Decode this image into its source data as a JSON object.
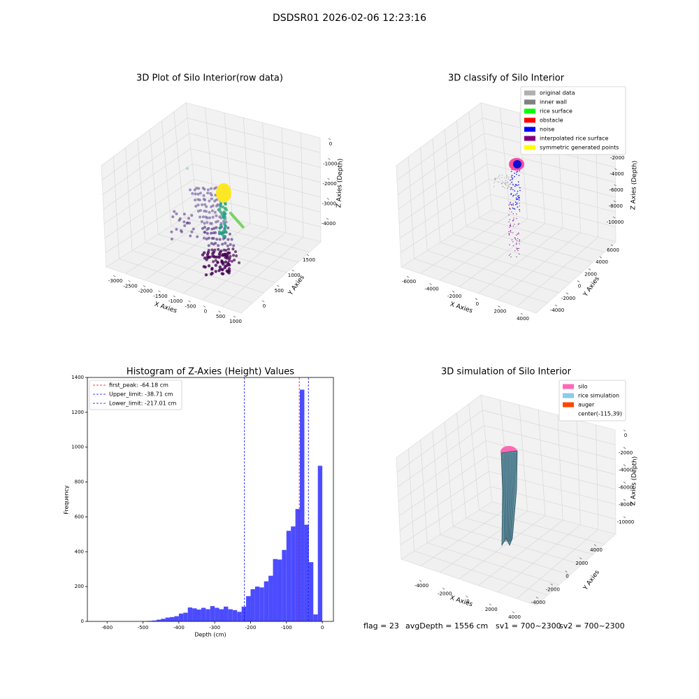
{
  "title": "DSDSR01 2026-02-06 12:23:16",
  "chart_data": [
    {
      "type": "scatter3d",
      "title": "3D Plot of Silo Interior(row data)",
      "xlabel": "X Axies",
      "ylabel": "Y Axies",
      "zlabel": "Z Axies (Depth)",
      "xlim": [
        -3000,
        1000
      ],
      "xticks": [
        -3000,
        -2500,
        -2000,
        -1500,
        -1000,
        -500,
        0,
        500,
        1000
      ],
      "ylim": [
        0,
        1500
      ],
      "yticks": [
        0,
        500,
        1000,
        1500
      ],
      "zlim": [
        0,
        -4000
      ],
      "zticks": [
        0,
        -1000,
        -2000,
        -3000,
        -4000
      ]
    },
    {
      "type": "scatter3d",
      "title": "3D classify of Silo Interior",
      "xlabel": "X Axies",
      "ylabel": "Y Axies",
      "zlabel": "Z Axies (Depth)",
      "xlim": [
        -6000,
        4000
      ],
      "xticks": [
        -6000,
        -4000,
        -2000,
        0,
        2000,
        4000
      ],
      "ylim": [
        -4000,
        6000
      ],
      "yticks": [
        -4000,
        -2000,
        0,
        2000,
        4000,
        6000
      ],
      "zlim": [
        0,
        -10000
      ],
      "zticks": [
        0,
        -2000,
        -4000,
        -6000,
        -8000,
        -10000
      ],
      "legend": [
        {
          "name": "original data",
          "color": "#b0b0b0"
        },
        {
          "name": "inner wall",
          "color": "#808080"
        },
        {
          "name": "rice surface",
          "color": "#00ff00"
        },
        {
          "name": "obstacle",
          "color": "#ff0000"
        },
        {
          "name": "noise",
          "color": "#0000ff"
        },
        {
          "name": "interpolated rice surface",
          "color": "#800080"
        },
        {
          "name": "symmetric generated points",
          "color": "#ffff00"
        }
      ]
    },
    {
      "type": "histogram",
      "title": "Histogram of Z-Axies (Height) Values",
      "xlabel": "Depth (cm)",
      "ylabel": "Frequency",
      "color": "#4c4cff",
      "bins": [
        -500,
        -487.5,
        -475,
        -462.5,
        -450,
        -437.5,
        -425,
        -412.5,
        -400,
        -387.5,
        -375,
        -362.5,
        -350,
        -337.5,
        -325,
        -312.5,
        -300,
        -287.5,
        -275,
        -262.5,
        -250,
        -237.5,
        -225,
        -212.5,
        -200,
        -187.5,
        -175,
        -162.5,
        -150,
        -137.5,
        -125,
        -112.5,
        -100,
        -87.5,
        -75,
        -62.5,
        -50,
        -37.5,
        -25,
        -12.5,
        0
      ],
      "values": [
        2,
        3,
        5,
        10,
        15,
        22,
        25,
        30,
        45,
        50,
        80,
        75,
        68,
        78,
        70,
        88,
        78,
        70,
        85,
        70,
        65,
        55,
        85,
        145,
        185,
        200,
        195,
        230,
        262,
        358,
        355,
        410,
        520,
        545,
        645,
        1330,
        555,
        340,
        40,
        893
      ],
      "xlim": [
        -655,
        31
      ],
      "xticks": [
        -600,
        -500,
        -400,
        -300,
        -200,
        -100,
        0
      ],
      "ylim": [
        0,
        1400
      ],
      "yticks": [
        0,
        200,
        400,
        600,
        800,
        1000,
        1200,
        1400
      ],
      "lines": [
        {
          "name": "first_peak: -64.18 cm",
          "value": -64.18,
          "color": "#ff0000"
        },
        {
          "name": "Upper_limit: -38.71 cm",
          "value": -38.71,
          "color": "#0000ff"
        },
        {
          "name": "Lower_limit: -217.01 cm",
          "value": -217.01,
          "color": "#0000ff"
        }
      ]
    },
    {
      "type": "surface3d",
      "title": "3D simulation of Silo Interior",
      "xlabel": "X Axies",
      "ylabel": "Y Axies",
      "zlabel": "Z Axies (Depth)",
      "xlim": [
        -4000,
        4000
      ],
      "xticks": [
        -4000,
        -2000,
        0,
        2000,
        4000
      ],
      "ylim": [
        -4000,
        4000
      ],
      "yticks": [
        -4000,
        -2000,
        0,
        2000,
        4000
      ],
      "zlim": [
        0,
        -10000
      ],
      "zticks": [
        0,
        -2000,
        -4000,
        -6000,
        -8000,
        -10000
      ],
      "legend": [
        {
          "name": "silo",
          "color": "#ff69b4"
        },
        {
          "name": "rice simulation",
          "color": "#87ceeb"
        },
        {
          "name": "auger",
          "color": "#ff4500"
        },
        {
          "name": "center(-115,39)"
        }
      ]
    }
  ],
  "footer": [
    "flag = 23",
    "avgDepth = 1556 cm",
    "sv1 = 700~2300",
    "sv2 = 700~2300"
  ]
}
